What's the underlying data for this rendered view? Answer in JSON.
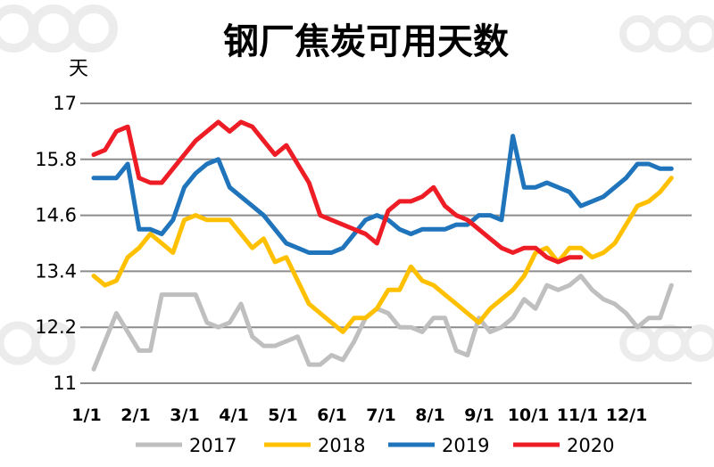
{
  "chart_data": {
    "type": "line",
    "title": "钢厂焦炭可用天数",
    "ylabel": "天",
    "xlabel": "",
    "ylim": [
      11,
      17
    ],
    "y_ticks": [
      "11",
      "12.2",
      "13.4",
      "14.6",
      "15.8",
      "17"
    ],
    "categories": [
      "1/1",
      "2/1",
      "3/1",
      "4/1",
      "5/1",
      "6/1",
      "7/1",
      "8/1",
      "9/1",
      "10/1",
      "11/1",
      "12/1"
    ],
    "x_unit": "week",
    "legend_position": "bottom",
    "grid": "horizontal",
    "series": [
      {
        "name": "2017",
        "color": "#bfbfbf",
        "x": [
          0,
          1,
          2,
          3,
          4,
          5,
          6,
          7,
          8,
          9,
          10,
          11,
          12,
          13,
          14,
          15,
          16,
          17,
          18,
          19,
          20,
          21,
          22,
          23,
          24,
          25,
          26,
          27,
          28,
          29,
          30,
          31,
          32,
          33,
          34,
          35,
          36,
          37,
          38,
          39,
          40,
          41,
          42,
          43,
          44,
          45,
          46,
          47,
          48,
          49,
          50,
          51
        ],
        "values": [
          11.3,
          11.9,
          12.5,
          12.1,
          11.7,
          11.7,
          12.9,
          12.9,
          12.9,
          12.9,
          12.3,
          12.2,
          12.3,
          12.7,
          12.0,
          11.8,
          11.8,
          11.9,
          12.0,
          11.4,
          11.4,
          11.6,
          11.5,
          11.9,
          12.4,
          12.6,
          12.5,
          12.2,
          12.2,
          12.1,
          12.4,
          12.4,
          11.7,
          11.6,
          12.4,
          12.1,
          12.2,
          12.4,
          12.8,
          12.6,
          13.1,
          13.0,
          13.1,
          13.3,
          13.0,
          12.8,
          12.7,
          12.5,
          12.2,
          12.4,
          12.4,
          13.1
        ]
      },
      {
        "name": "2018",
        "color": "#ffc000",
        "x": [
          0,
          1,
          2,
          3,
          4,
          5,
          6,
          7,
          8,
          9,
          10,
          11,
          12,
          13,
          14,
          15,
          16,
          17,
          18,
          19,
          20,
          21,
          22,
          23,
          24,
          25,
          26,
          27,
          28,
          29,
          30,
          31,
          32,
          33,
          34,
          35,
          36,
          37,
          38,
          39,
          40,
          41,
          42,
          43,
          44,
          45,
          46,
          47,
          48,
          49,
          50,
          51
        ],
        "values": [
          13.3,
          13.1,
          13.2,
          13.7,
          13.9,
          14.2,
          14.0,
          13.8,
          14.5,
          14.6,
          14.5,
          14.5,
          14.5,
          14.2,
          13.9,
          14.1,
          13.6,
          13.7,
          13.2,
          12.7,
          12.5,
          12.3,
          12.1,
          12.4,
          12.4,
          12.6,
          13.0,
          13.0,
          13.5,
          13.2,
          13.1,
          12.9,
          12.7,
          12.5,
          12.3,
          12.6,
          12.8,
          13.0,
          13.3,
          13.8,
          13.9,
          13.6,
          13.9,
          13.9,
          13.7,
          13.8,
          14.0,
          14.4,
          14.8,
          14.9,
          15.1,
          15.4
        ]
      },
      {
        "name": "2019",
        "color": "#1f74bb",
        "x": [
          0,
          1,
          2,
          3,
          4,
          5,
          6,
          7,
          8,
          9,
          10,
          11,
          12,
          13,
          14,
          15,
          16,
          17,
          18,
          19,
          20,
          21,
          22,
          23,
          24,
          25,
          26,
          27,
          28,
          29,
          30,
          31,
          32,
          33,
          34,
          35,
          36,
          37,
          38,
          39,
          40,
          41,
          42,
          43,
          44,
          45,
          46,
          47,
          48,
          49,
          50,
          51
        ],
        "values": [
          15.4,
          15.4,
          15.4,
          15.7,
          14.3,
          14.3,
          14.2,
          14.5,
          15.2,
          15.5,
          15.7,
          15.8,
          15.2,
          15.0,
          14.8,
          14.6,
          14.3,
          14.0,
          13.9,
          13.8,
          13.8,
          13.8,
          13.9,
          14.2,
          14.5,
          14.6,
          14.5,
          14.3,
          14.2,
          14.3,
          14.3,
          14.3,
          14.4,
          14.4,
          14.6,
          14.6,
          14.5,
          16.3,
          15.2,
          15.2,
          15.3,
          15.2,
          15.1,
          14.8,
          14.9,
          15.0,
          15.2,
          15.4,
          15.7,
          15.7,
          15.6,
          15.6
        ]
      },
      {
        "name": "2020",
        "color": "#ee1c25",
        "x": [
          0,
          1,
          2,
          3,
          4,
          5,
          6,
          7,
          8,
          9,
          10,
          11,
          12,
          13,
          14,
          15,
          16,
          17,
          18,
          19,
          20,
          21,
          22,
          23,
          24,
          25,
          26,
          27,
          28,
          29,
          30,
          31,
          32,
          33,
          34,
          35,
          36,
          37,
          38,
          39,
          40,
          41,
          42,
          43
        ],
        "values": [
          15.9,
          16.0,
          16.4,
          16.5,
          15.4,
          15.3,
          15.3,
          15.6,
          15.9,
          16.2,
          16.4,
          16.6,
          16.4,
          16.6,
          16.5,
          16.2,
          15.9,
          16.1,
          15.7,
          15.3,
          14.6,
          14.5,
          14.4,
          14.3,
          14.2,
          14.0,
          14.7,
          14.9,
          14.9,
          15.0,
          15.2,
          14.8,
          14.6,
          14.5,
          14.3,
          14.1,
          13.9,
          13.8,
          13.9,
          13.9,
          13.7,
          13.6,
          13.7,
          13.7
        ]
      }
    ]
  }
}
